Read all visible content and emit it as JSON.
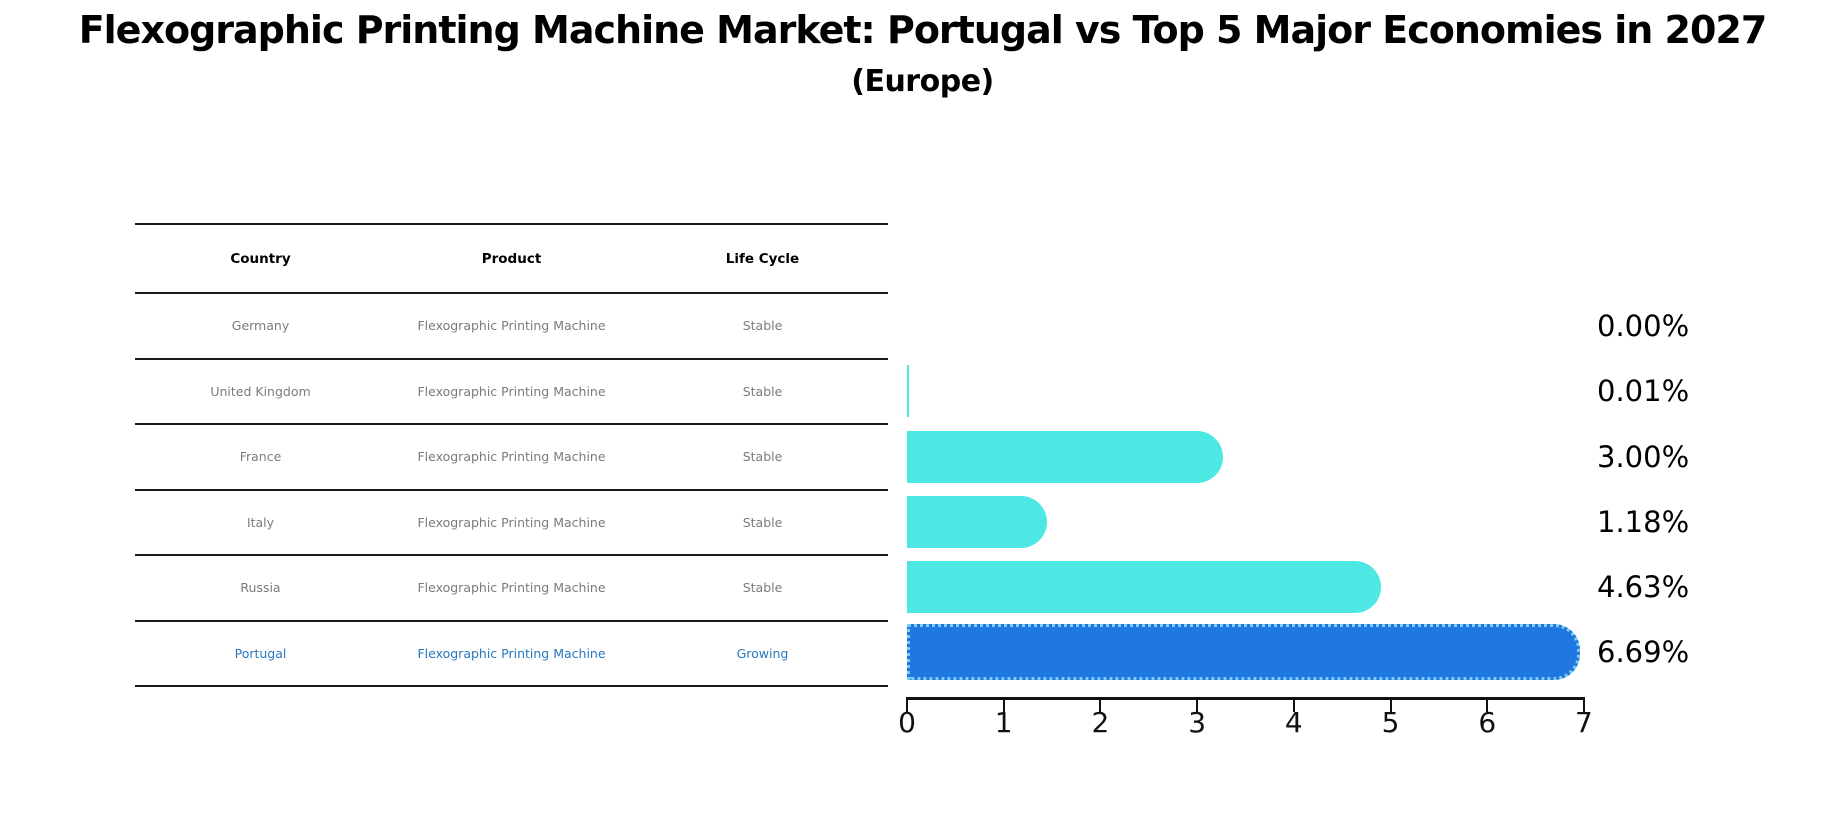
{
  "title": "Flexographic Printing Machine Market: Portugal vs Top 5 Major Economies in 2027",
  "subtitle": "(Europe)",
  "table": {
    "headers": [
      "Country",
      "Product",
      "Life Cycle"
    ],
    "rows": [
      {
        "country": "Germany",
        "product": "Flexographic Printing Machine",
        "life_cycle": "Stable",
        "highlight": false
      },
      {
        "country": "United Kingdom",
        "product": "Flexographic Printing Machine",
        "life_cycle": "Stable",
        "highlight": false
      },
      {
        "country": "France",
        "product": "Flexographic Printing Machine",
        "life_cycle": "Stable",
        "highlight": false
      },
      {
        "country": "Italy",
        "product": "Flexographic Printing Machine",
        "life_cycle": "Stable",
        "highlight": false
      },
      {
        "country": "Russia",
        "product": "Flexographic Printing Machine",
        "life_cycle": "Stable",
        "highlight": false
      },
      {
        "country": "Portugal",
        "product": "Flexographic Printing Machine",
        "life_cycle": "Growing",
        "highlight": true
      }
    ]
  },
  "chart_data": {
    "type": "bar",
    "orientation": "horizontal",
    "title": "Flexographic Printing Machine Market: Portugal vs Top 5 Major Economies in 2027 (Europe)",
    "categories": [
      "Germany",
      "United Kingdom",
      "France",
      "Italy",
      "Russia",
      "Portugal"
    ],
    "values": [
      0.0,
      0.01,
      3.0,
      1.18,
      4.63,
      6.69
    ],
    "value_labels": [
      "0.00%",
      "0.01%",
      "3.00%",
      "1.18%",
      "4.63%",
      "6.69%"
    ],
    "xlim": [
      0,
      7
    ],
    "xticks": [
      "0",
      "1",
      "2",
      "3",
      "4",
      "5",
      "6",
      "7"
    ],
    "grid": false,
    "legend": false,
    "bar_color": "#4DE8E4",
    "highlight_color": "#1E78E0",
    "highlight_index": 5
  },
  "colors": {
    "bar_cyan": "#4DE8E4",
    "bar_blue": "#1E78E0",
    "highlight_border": "#7CCBF0",
    "highlight_text": "#2878c0",
    "table_text": "#7b7b7b",
    "line": "#1a1a1a"
  }
}
